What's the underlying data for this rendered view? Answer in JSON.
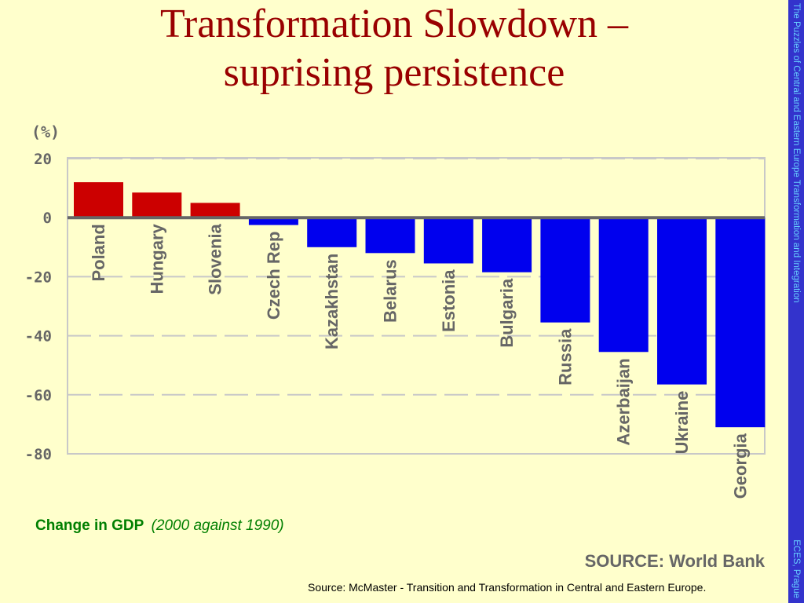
{
  "slide": {
    "title_line1": "Transformation Slowdown –",
    "title_line2": "suprising persistence",
    "sidebar_left": "The Puzzles of Central and Eastern Europe Transformation and Integration",
    "sidebar_right": "ECES, Prague",
    "caption_label": "Change in GDP",
    "caption_note": "(2000 against 1990)",
    "footer_source": "Source: McMaster - Transition and Transformation in Central and Eastern Europe."
  },
  "colors": {
    "background": "#ffffcc",
    "title": "#990000",
    "positive_bar": "#cc0000",
    "negative_bar": "#0000ee",
    "axis_text": "#666666",
    "sidebar_bg": "#3333cc",
    "sidebar_text": "#66ccff",
    "caption": "#007f00"
  },
  "chart_data": {
    "type": "bar",
    "unit_label": "(%)",
    "categories": [
      "Poland",
      "Hungary",
      "Slovenia",
      "Czech Rep",
      "Kazakhstan",
      "Belarus",
      "Estonia",
      "Bulgaria",
      "Russia",
      "Azerbaijan",
      "Ukraine",
      "Georgia"
    ],
    "values": [
      12,
      8.5,
      5,
      -2.5,
      -10,
      -12,
      -15.5,
      -18.5,
      -35.5,
      -45.5,
      -56.5,
      -71
    ],
    "ylim": [
      -80,
      20
    ],
    "yticks": [
      20,
      0,
      -20,
      -40,
      -60,
      -80
    ],
    "ytick_labels": [
      "20",
      "0",
      "-20",
      "-40",
      "-60",
      "-80"
    ],
    "grid": true,
    "source_label": "SOURCE: World Bank"
  }
}
